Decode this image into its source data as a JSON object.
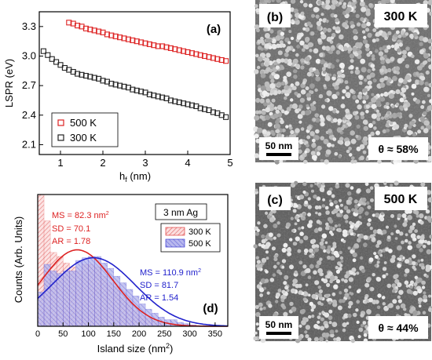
{
  "colors": {
    "red": "#dd2222",
    "black": "#222222",
    "blue": "#2222cc",
    "red_fill": "#f0a0a0",
    "blue_fill": "#a0a0e8"
  },
  "chart_data": [
    {
      "panel": "(a)",
      "type": "scatter",
      "xlabel": "h",
      "xlabel_sub": "f",
      "xlabel_unit": " (nm)",
      "ylabel": "LSPR (eV)",
      "xlim": [
        0.5,
        5
      ],
      "ylim": [
        2.0,
        3.45
      ],
      "xticks": [
        "1",
        "2",
        "3",
        "4",
        "5"
      ],
      "yticks": [
        "2.1",
        "2.4",
        "2.7",
        "3.0",
        "3.3"
      ],
      "legend_position": "bottom-left",
      "series": [
        {
          "name": "500 K",
          "color": "#dd2222",
          "x": [
            1.2,
            1.3,
            1.4,
            1.5,
            1.6,
            1.7,
            1.8,
            1.9,
            2.0,
            2.1,
            2.2,
            2.3,
            2.4,
            2.5,
            2.6,
            2.7,
            2.8,
            2.9,
            3.0,
            3.1,
            3.2,
            3.3,
            3.4,
            3.5,
            3.6,
            3.7,
            3.8,
            3.9,
            4.0,
            4.1,
            4.2,
            4.3,
            4.4,
            4.5,
            4.6,
            4.7,
            4.8,
            4.9
          ],
          "y": [
            3.34,
            3.33,
            3.31,
            3.3,
            3.28,
            3.27,
            3.26,
            3.25,
            3.24,
            3.22,
            3.21,
            3.2,
            3.19,
            3.18,
            3.17,
            3.16,
            3.15,
            3.14,
            3.13,
            3.12,
            3.11,
            3.1,
            3.1,
            3.09,
            3.08,
            3.07,
            3.06,
            3.05,
            3.04,
            3.03,
            3.02,
            3.01,
            3.0,
            2.99,
            2.98,
            2.97,
            2.96,
            2.95
          ]
        },
        {
          "name": "300 K",
          "color": "#222222",
          "x": [
            0.6,
            0.7,
            0.8,
            0.9,
            1.0,
            1.1,
            1.2,
            1.3,
            1.4,
            1.5,
            1.6,
            1.7,
            1.8,
            1.9,
            2.0,
            2.1,
            2.2,
            2.3,
            2.4,
            2.5,
            2.6,
            2.7,
            2.8,
            2.9,
            3.0,
            3.1,
            3.2,
            3.3,
            3.4,
            3.5,
            3.6,
            3.7,
            3.8,
            3.9,
            4.0,
            4.1,
            4.2,
            4.3,
            4.4,
            4.5,
            4.6,
            4.7,
            4.8,
            4.9
          ],
          "y": [
            3.05,
            3.01,
            2.97,
            2.94,
            2.91,
            2.88,
            2.86,
            2.84,
            2.82,
            2.81,
            2.8,
            2.79,
            2.78,
            2.77,
            2.75,
            2.74,
            2.72,
            2.71,
            2.7,
            2.69,
            2.68,
            2.66,
            2.65,
            2.64,
            2.63,
            2.61,
            2.6,
            2.59,
            2.58,
            2.57,
            2.55,
            2.54,
            2.53,
            2.52,
            2.51,
            2.5,
            2.49,
            2.47,
            2.46,
            2.45,
            2.43,
            2.42,
            2.4,
            2.38
          ]
        }
      ]
    },
    {
      "panel": "(d)",
      "type": "bar",
      "xlabel": "Island size (nm",
      "xlabel_sup": "2",
      "xlabel_end": ")",
      "ylabel": "Counts (Arb. Units)",
      "xlim": [
        0,
        375
      ],
      "ylim": [
        0,
        1
      ],
      "xticks": [
        "0",
        "50",
        "100",
        "150",
        "200",
        "250",
        "300",
        "350"
      ],
      "bin_width": 12.5,
      "annotation": "3 nm Ag",
      "legend_position": "top-right",
      "series": [
        {
          "name": "300 K",
          "color": "#dd2222",
          "values": [
            1.0,
            0.8,
            0.56,
            0.53,
            0.48,
            0.45,
            0.42,
            0.47,
            0.47,
            0.45,
            0.38,
            0.33,
            0.3,
            0.22,
            0.18,
            0.12,
            0.08,
            0.06,
            0.04,
            0.03,
            0.02,
            0.02,
            0.01,
            0.01,
            0.0,
            0.0,
            0.0,
            0.0,
            0.0,
            0.0
          ],
          "fit": {
            "mean": 78,
            "sd": 70,
            "amp": 0.58
          },
          "stats": [
            "MS = 82.3 nm",
            "SD = 70.1",
            "AR = 1.78"
          ]
        },
        {
          "name": "500 K",
          "color": "#2222cc",
          "values": [
            0.26,
            0.47,
            0.42,
            0.4,
            0.42,
            0.42,
            0.5,
            0.52,
            0.53,
            0.53,
            0.48,
            0.44,
            0.38,
            0.33,
            0.28,
            0.23,
            0.17,
            0.13,
            0.1,
            0.07,
            0.05,
            0.05,
            0.03,
            0.02,
            0.01,
            0.0,
            0.0,
            0.0,
            0.0,
            0.0
          ],
          "fit": {
            "mean": 110,
            "sd": 82,
            "amp": 0.52
          },
          "stats": [
            "MS = 110.9 nm",
            "SD = 81.7",
            "AR = 1.54"
          ]
        }
      ]
    }
  ],
  "micrographs": [
    {
      "panel": "(b)",
      "temperature": "300 K",
      "scalebar": "50 nm",
      "coverage": "θ ≈ 58%"
    },
    {
      "panel": "(c)",
      "temperature": "500 K",
      "scalebar": "50 nm",
      "coverage": "θ ≈ 44%"
    }
  ],
  "stats_sup": "2"
}
